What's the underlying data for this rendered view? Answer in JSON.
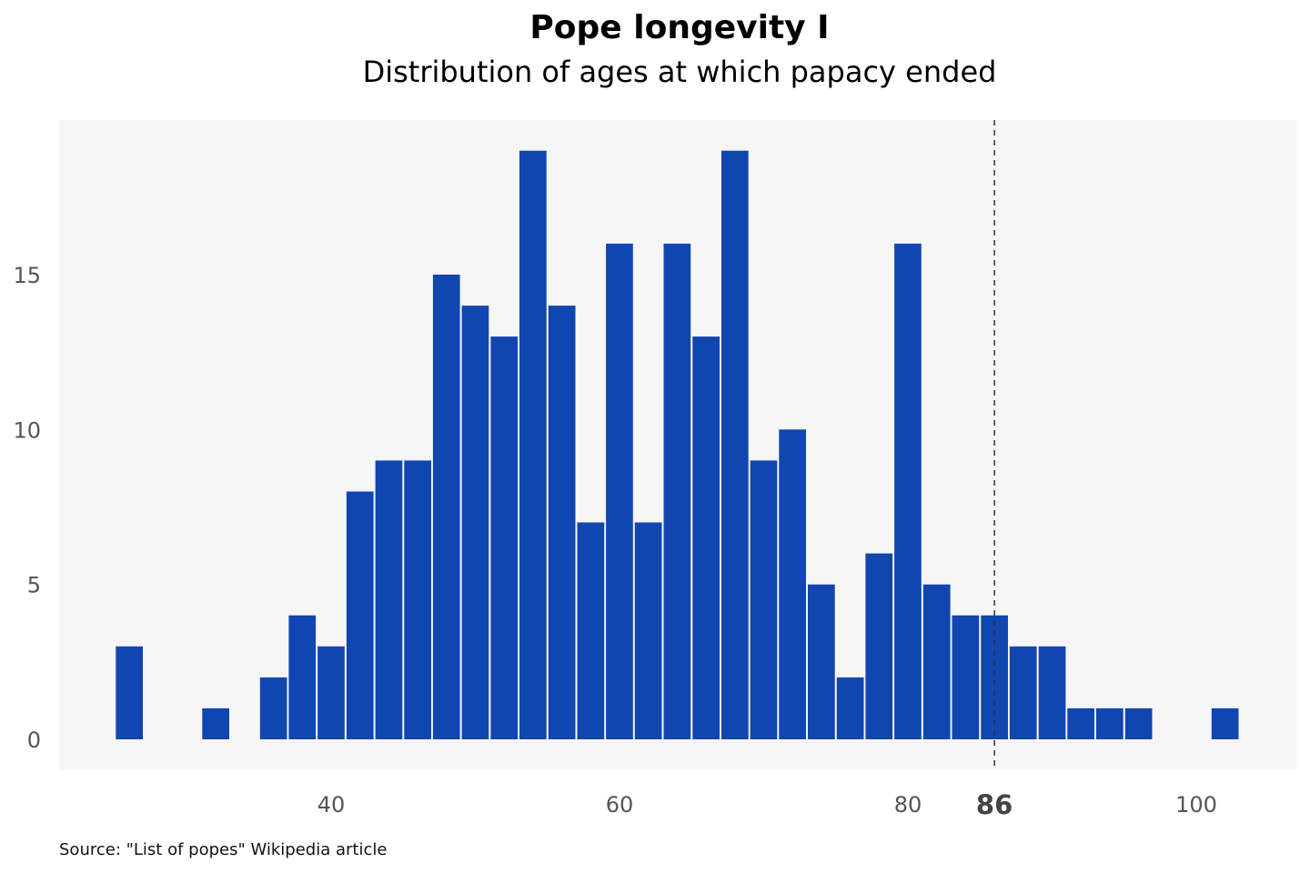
{
  "chart_data": {
    "type": "bar",
    "title": "Pope longevity I",
    "subtitle": "Distribution of ages at which papacy ended",
    "source": "Source: \"List of popes\" Wikipedia article",
    "bins": [
      {
        "x": 26,
        "value": 3
      },
      {
        "x": 32,
        "value": 1
      },
      {
        "x": 36,
        "value": 2
      },
      {
        "x": 38,
        "value": 4
      },
      {
        "x": 40,
        "value": 3
      },
      {
        "x": 42,
        "value": 8
      },
      {
        "x": 44,
        "value": 9
      },
      {
        "x": 46,
        "value": 9
      },
      {
        "x": 48,
        "value": 15
      },
      {
        "x": 50,
        "value": 14
      },
      {
        "x": 52,
        "value": 13
      },
      {
        "x": 54,
        "value": 19
      },
      {
        "x": 56,
        "value": 14
      },
      {
        "x": 58,
        "value": 7
      },
      {
        "x": 60,
        "value": 16
      },
      {
        "x": 62,
        "value": 7
      },
      {
        "x": 64,
        "value": 16
      },
      {
        "x": 66,
        "value": 13
      },
      {
        "x": 68,
        "value": 19
      },
      {
        "x": 70,
        "value": 9
      },
      {
        "x": 72,
        "value": 10
      },
      {
        "x": 74,
        "value": 5
      },
      {
        "x": 76,
        "value": 2
      },
      {
        "x": 78,
        "value": 6
      },
      {
        "x": 80,
        "value": 16
      },
      {
        "x": 82,
        "value": 5
      },
      {
        "x": 84,
        "value": 4
      },
      {
        "x": 86,
        "value": 4
      },
      {
        "x": 88,
        "value": 3
      },
      {
        "x": 90,
        "value": 3
      },
      {
        "x": 92,
        "value": 1
      },
      {
        "x": 94,
        "value": 1
      },
      {
        "x": 96,
        "value": 1
      },
      {
        "x": 102,
        "value": 1
      }
    ],
    "bin_width": 2,
    "xlim": [
      21,
      107
    ],
    "ylim": [
      -1,
      20
    ],
    "x_ticks": [
      "40",
      "60",
      "80",
      "100"
    ],
    "y_ticks": [
      "0",
      "5",
      "10",
      "15"
    ],
    "reference_line": {
      "x": 86,
      "label": "86",
      "style": "dashed"
    },
    "bar_color": "#1146b1",
    "plot_background": "#f6f6f6",
    "grid": false,
    "legend": "none"
  }
}
